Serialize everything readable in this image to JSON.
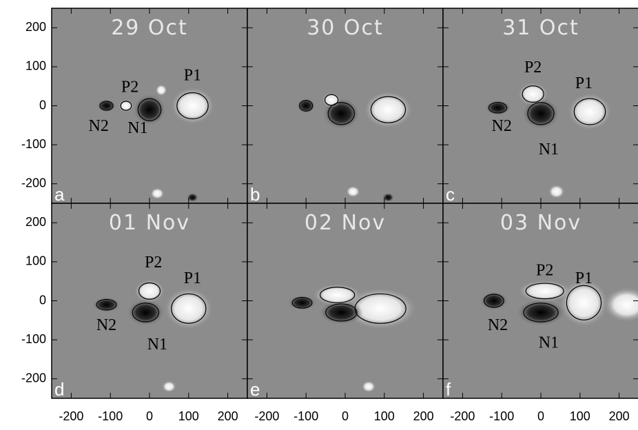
{
  "figure": {
    "panels": [
      {
        "title": "29 Oct",
        "letter": "a",
        "labels": [
          "P1",
          "P2",
          "N1",
          "N2"
        ]
      },
      {
        "title": "30 Oct",
        "letter": "b",
        "labels": []
      },
      {
        "title": "31 Oct",
        "letter": "c",
        "labels": [
          "P1",
          "P2",
          "N1",
          "N2"
        ]
      },
      {
        "title": "01 Nov",
        "letter": "d",
        "labels": [
          "P1",
          "P2",
          "N1",
          "N2"
        ]
      },
      {
        "title": "02 Nov",
        "letter": "e",
        "labels": []
      },
      {
        "title": "03 Nov",
        "letter": "f",
        "labels": [
          "P1",
          "P2",
          "N1",
          "N2"
        ]
      }
    ],
    "xaxis": {
      "lim": [
        -250,
        250
      ],
      "ticks": [
        -200,
        -100,
        0,
        100,
        200
      ]
    },
    "yaxis": {
      "lim": [
        -250,
        250
      ],
      "ticks": [
        -200,
        -100,
        0,
        100,
        200
      ]
    }
  }
}
